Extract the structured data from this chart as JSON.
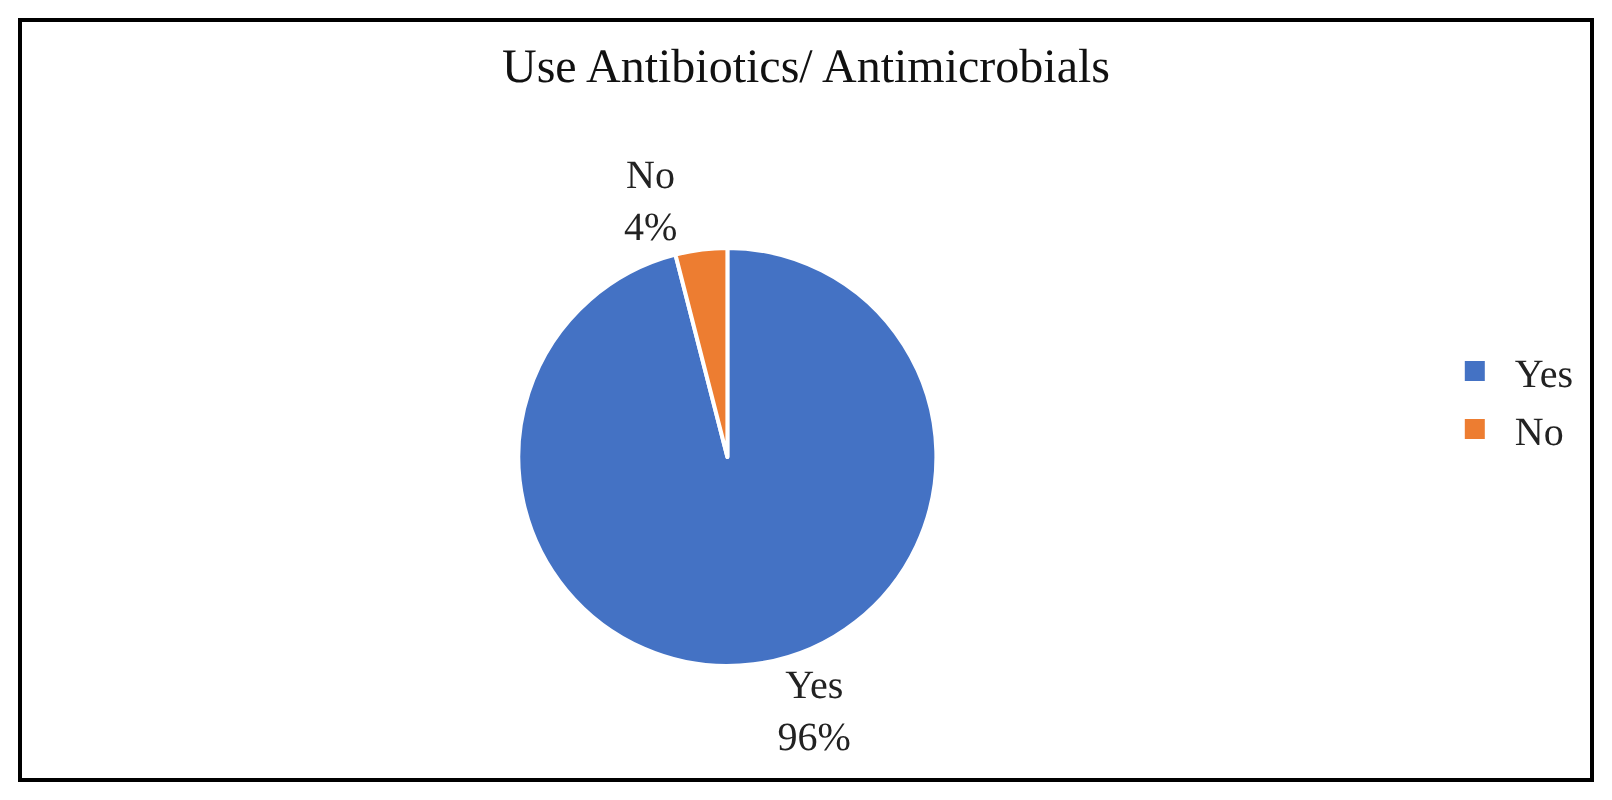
{
  "chart_data": {
    "type": "pie",
    "title": "Use Antibiotics/ Antimicrobials",
    "categories": [
      "Yes",
      "No"
    ],
    "values": [
      96,
      4
    ],
    "colors": [
      "#4472c4",
      "#ed7d31"
    ],
    "value_labels": [
      "96%",
      "4%"
    ],
    "legend": "right"
  }
}
